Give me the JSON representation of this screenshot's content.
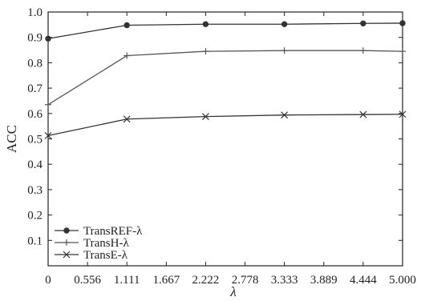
{
  "chart_data": {
    "type": "line",
    "xlabel": "λ",
    "ylabel": "ACC",
    "xlim": [
      0,
      5
    ],
    "ylim": [
      0,
      1
    ],
    "x_ticks": [
      0,
      0.556,
      1.111,
      1.667,
      2.222,
      2.778,
      3.333,
      3.889,
      4.444,
      5.0
    ],
    "x_tick_labels": [
      "0",
      "0.556",
      "1.111",
      "1.667",
      "2.222",
      "2.778",
      "3.333",
      "3.889",
      "4.444",
      "5.000"
    ],
    "y_ticks": [
      0.1,
      0.2,
      0.3,
      0.4,
      0.5,
      0.6,
      0.7,
      0.8,
      0.9,
      1.0
    ],
    "y_tick_labels": [
      "0.1",
      "0.2",
      "0.3",
      "0.4",
      "0.5",
      "0.6",
      "0.7",
      "0.8",
      "0.9",
      "1.0"
    ],
    "grid": false,
    "legend_position": "bottom-left",
    "series": [
      {
        "name": "TransREF-λ",
        "marker": "circle",
        "color": "#333333",
        "x": [
          0,
          1.111,
          2.222,
          3.333,
          4.444,
          5.0
        ],
        "y": [
          0.895,
          0.948,
          0.952,
          0.952,
          0.955,
          0.956
        ]
      },
      {
        "name": "TransH-λ",
        "marker": "plus",
        "color": "#555555",
        "x": [
          0,
          1.111,
          2.222,
          3.333,
          4.444,
          5.0
        ],
        "y": [
          0.635,
          0.828,
          0.845,
          0.848,
          0.848,
          0.845
        ]
      },
      {
        "name": "TransE-λ",
        "marker": "x",
        "color": "#333333",
        "x": [
          0,
          1.111,
          2.222,
          3.333,
          4.444,
          5.0
        ],
        "y": [
          0.513,
          0.578,
          0.588,
          0.594,
          0.596,
          0.597
        ]
      }
    ]
  }
}
